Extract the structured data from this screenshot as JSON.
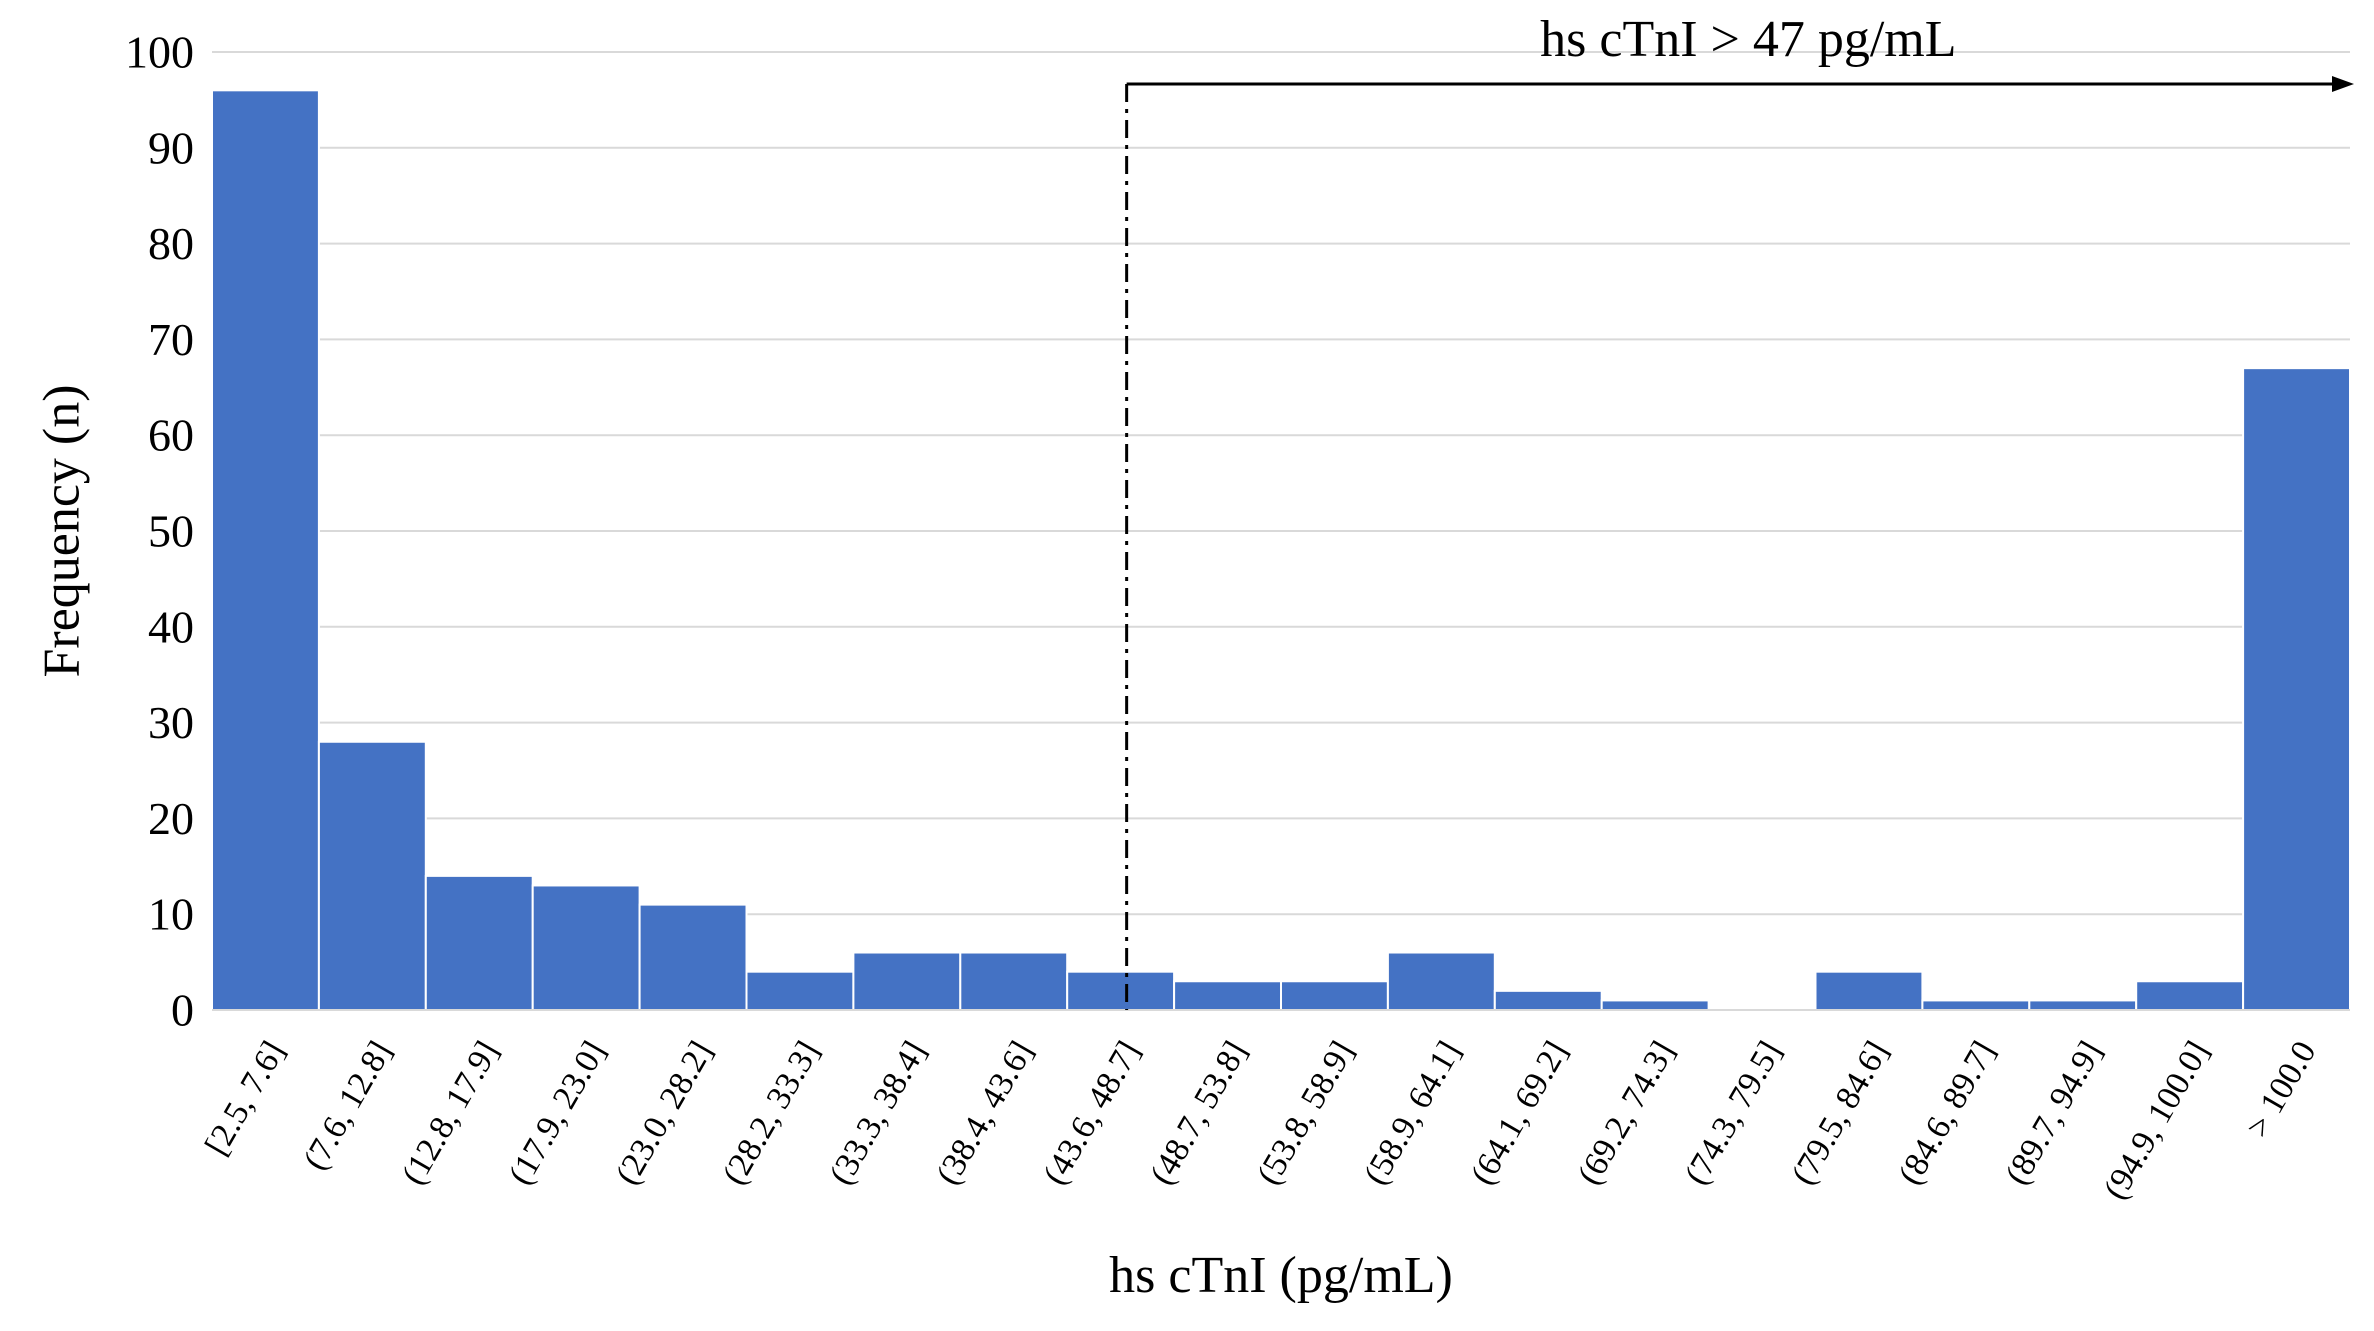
{
  "chart_data": {
    "type": "bar",
    "title": "",
    "xlabel": "hs cTnI (pg/mL)",
    "ylabel": "Frequency (n)",
    "ylim": [
      0,
      100
    ],
    "yticks": [
      0,
      10,
      20,
      30,
      40,
      50,
      60,
      70,
      80,
      90,
      100
    ],
    "grid": "horizontal",
    "categories": [
      "[2.5, 7.6]",
      "(7.6, 12.8]",
      "(12.8, 17.9]",
      "(17.9, 23.0]",
      "(23.0, 28.2]",
      "(28.2, 33.3]",
      "(33.3, 38.4]",
      "(38.4, 43.6]",
      "(43.6, 48.7]",
      "(48.7, 53.8]",
      "(53.8, 58.9]",
      "(58.9, 64.1]",
      "(64.1, 69.2]",
      "(69.2, 74.3]",
      "(74.3, 79.5]",
      "(79.5, 84.6]",
      "(84.6, 89.7]",
      "(89.7, 94.9]",
      "(94.9, 100.0]",
      "> 100.0"
    ],
    "values": [
      96,
      28,
      14,
      13,
      11,
      4,
      6,
      6,
      4,
      3,
      3,
      6,
      2,
      1,
      0,
      4,
      1,
      1,
      3,
      67
    ],
    "bar_color": "#4472C4",
    "annotation": {
      "text": "hs cTnI > 47 pg/mL",
      "threshold": 47
    }
  }
}
